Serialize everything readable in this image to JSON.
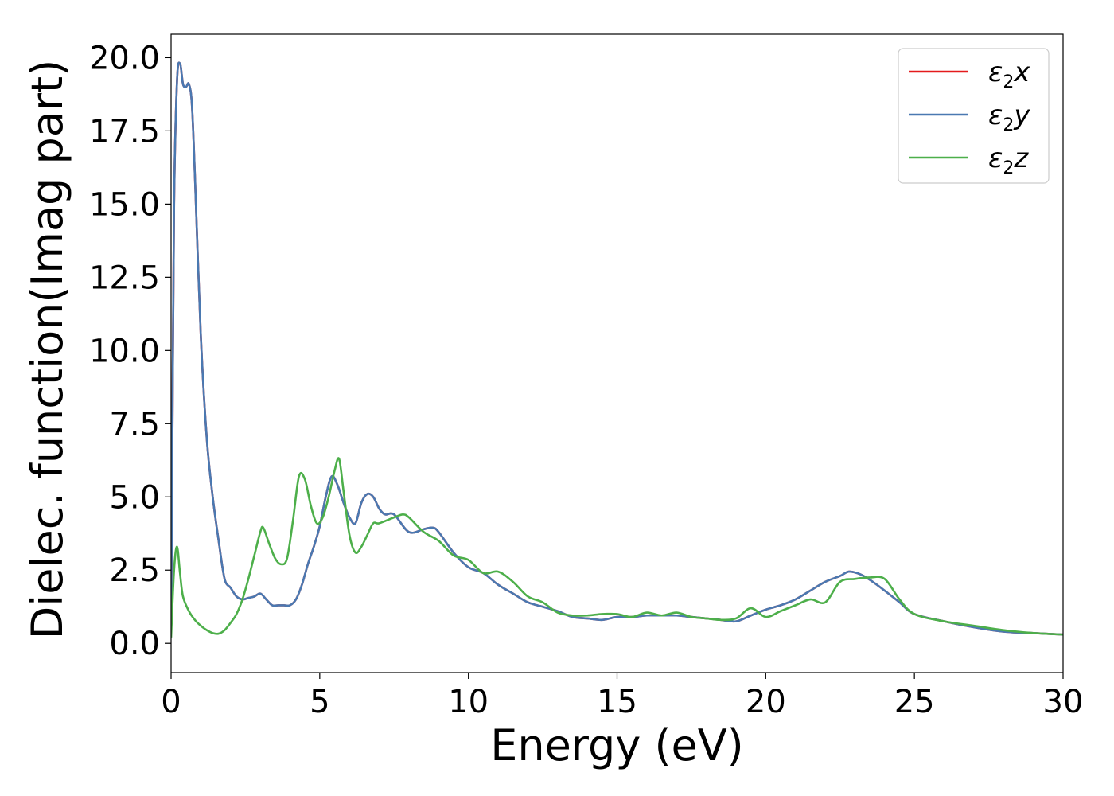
{
  "chart_data": {
    "type": "line",
    "xlabel": "Energy (eV)",
    "ylabel": "Dielec. function(Imag part)",
    "xlim": [
      0,
      30
    ],
    "ylim": [
      -1.0,
      20.8
    ],
    "xticks": [
      0,
      5,
      10,
      15,
      20,
      25,
      30
    ],
    "xtick_labels": [
      "0",
      "5",
      "10",
      "15",
      "20",
      "25",
      "30"
    ],
    "yticks": [
      0,
      2.5,
      5,
      7.5,
      10,
      12.5,
      15,
      17.5,
      20
    ],
    "ytick_labels": [
      "0.0",
      "2.5",
      "5.0",
      "7.5",
      "10.0",
      "12.5",
      "15.0",
      "17.5",
      "20.0"
    ],
    "grid": false,
    "legend_position": "top-right",
    "series": [
      {
        "name": "ε2x",
        "legend_main": "ε",
        "legend_sub": "2",
        "legend_var": "x",
        "color": "#e41a1c",
        "x": [
          0,
          0.05,
          0.1,
          0.2,
          0.3,
          0.4,
          0.5,
          0.6,
          0.7,
          0.8,
          1.0,
          1.2,
          1.4,
          1.6,
          1.8,
          2.0,
          2.2,
          2.4,
          2.6,
          2.8,
          3.0,
          3.2,
          3.4,
          3.6,
          3.8,
          4.0,
          4.2,
          4.4,
          4.6,
          4.8,
          5.0,
          5.2,
          5.4,
          5.6,
          5.8,
          6.0,
          6.2,
          6.4,
          6.6,
          6.8,
          7.0,
          7.2,
          7.5,
          8.0,
          8.5,
          8.8,
          9.0,
          9.5,
          10.0,
          10.5,
          11.0,
          11.5,
          12.0,
          12.5,
          13.0,
          13.5,
          14.0,
          14.5,
          15.0,
          15.5,
          16.0,
          16.5,
          17.0,
          17.5,
          18.0,
          18.5,
          19.0,
          19.5,
          20.0,
          20.5,
          21.0,
          21.5,
          22.0,
          22.5,
          22.8,
          23.2,
          23.6,
          24.0,
          24.5,
          25.0,
          26.0,
          27.0,
          28.0,
          29.0,
          30.0
        ],
        "y": [
          0.3,
          8.0,
          15.0,
          19.2,
          19.8,
          19.1,
          19.0,
          19.1,
          18.4,
          16.0,
          10.5,
          7.0,
          5.0,
          3.5,
          2.2,
          1.9,
          1.6,
          1.5,
          1.55,
          1.6,
          1.7,
          1.5,
          1.3,
          1.3,
          1.3,
          1.3,
          1.5,
          2.0,
          2.7,
          3.3,
          4.0,
          5.0,
          5.7,
          5.4,
          4.8,
          4.3,
          4.1,
          4.8,
          5.1,
          5.0,
          4.6,
          4.4,
          4.4,
          3.8,
          3.9,
          3.95,
          3.8,
          3.1,
          2.6,
          2.4,
          2.0,
          1.7,
          1.4,
          1.25,
          1.1,
          0.9,
          0.85,
          0.8,
          0.9,
          0.9,
          0.95,
          0.95,
          0.95,
          0.9,
          0.85,
          0.8,
          0.75,
          0.95,
          1.15,
          1.3,
          1.5,
          1.8,
          2.1,
          2.3,
          2.45,
          2.35,
          2.1,
          1.8,
          1.4,
          1.0,
          0.75,
          0.55,
          0.4,
          0.35,
          0.3
        ]
      },
      {
        "name": "ε2y",
        "legend_main": "ε",
        "legend_sub": "2",
        "legend_var": "y",
        "color": "#4a79b1",
        "x": [
          0,
          0.05,
          0.1,
          0.2,
          0.3,
          0.4,
          0.5,
          0.6,
          0.7,
          0.8,
          1.0,
          1.2,
          1.4,
          1.6,
          1.8,
          2.0,
          2.2,
          2.4,
          2.6,
          2.8,
          3.0,
          3.2,
          3.4,
          3.6,
          3.8,
          4.0,
          4.2,
          4.4,
          4.6,
          4.8,
          5.0,
          5.2,
          5.4,
          5.6,
          5.8,
          6.0,
          6.2,
          6.4,
          6.6,
          6.8,
          7.0,
          7.2,
          7.5,
          8.0,
          8.5,
          8.8,
          9.0,
          9.5,
          10.0,
          10.5,
          11.0,
          11.5,
          12.0,
          12.5,
          13.0,
          13.5,
          14.0,
          14.5,
          15.0,
          15.5,
          16.0,
          16.5,
          17.0,
          17.5,
          18.0,
          18.5,
          19.0,
          19.5,
          20.0,
          20.5,
          21.0,
          21.5,
          22.0,
          22.5,
          22.8,
          23.2,
          23.6,
          24.0,
          24.5,
          25.0,
          26.0,
          27.0,
          28.0,
          29.0,
          30.0
        ],
        "y": [
          0.3,
          8.0,
          15.0,
          19.2,
          19.8,
          19.1,
          19.0,
          19.1,
          18.4,
          16.0,
          10.5,
          7.0,
          5.0,
          3.5,
          2.2,
          1.9,
          1.6,
          1.5,
          1.55,
          1.6,
          1.7,
          1.5,
          1.3,
          1.3,
          1.3,
          1.3,
          1.5,
          2.0,
          2.7,
          3.3,
          4.0,
          5.0,
          5.7,
          5.4,
          4.8,
          4.3,
          4.1,
          4.8,
          5.1,
          5.0,
          4.6,
          4.4,
          4.4,
          3.8,
          3.9,
          3.95,
          3.8,
          3.1,
          2.6,
          2.4,
          2.0,
          1.7,
          1.4,
          1.25,
          1.1,
          0.9,
          0.85,
          0.8,
          0.9,
          0.9,
          0.95,
          0.95,
          0.95,
          0.9,
          0.85,
          0.8,
          0.75,
          0.95,
          1.15,
          1.3,
          1.5,
          1.8,
          2.1,
          2.3,
          2.45,
          2.35,
          2.1,
          1.8,
          1.4,
          1.0,
          0.75,
          0.55,
          0.4,
          0.35,
          0.3
        ]
      },
      {
        "name": "ε2z",
        "legend_main": "ε",
        "legend_sub": "2",
        "legend_var": "z",
        "color": "#4daf4a",
        "x": [
          0,
          0.1,
          0.2,
          0.3,
          0.4,
          0.6,
          0.8,
          1.0,
          1.2,
          1.4,
          1.6,
          1.8,
          2.0,
          2.2,
          2.4,
          2.6,
          2.8,
          3.0,
          3.1,
          3.3,
          3.5,
          3.7,
          3.9,
          4.1,
          4.3,
          4.5,
          4.7,
          4.9,
          5.1,
          5.3,
          5.5,
          5.65,
          5.8,
          6.0,
          6.2,
          6.4,
          6.6,
          6.8,
          7.0,
          7.5,
          7.8,
          8.0,
          8.5,
          9.0,
          9.5,
          10.0,
          10.5,
          11.0,
          11.5,
          12.0,
          12.5,
          13.0,
          13.5,
          14.0,
          14.5,
          15.0,
          15.5,
          16.0,
          16.5,
          17.0,
          17.5,
          18.0,
          18.5,
          19.0,
          19.5,
          20.0,
          20.5,
          21.0,
          21.5,
          22.0,
          22.5,
          23.0,
          23.5,
          24.0,
          24.5,
          25.0,
          26.0,
          27.0,
          28.0,
          29.0,
          30.0
        ],
        "y": [
          0.2,
          2.5,
          3.3,
          2.4,
          1.6,
          1.1,
          0.8,
          0.6,
          0.45,
          0.35,
          0.33,
          0.45,
          0.7,
          1.0,
          1.5,
          2.2,
          3.0,
          3.8,
          3.95,
          3.4,
          2.9,
          2.7,
          2.9,
          4.2,
          5.7,
          5.6,
          4.7,
          4.1,
          4.3,
          5.0,
          5.9,
          6.3,
          5.2,
          3.7,
          3.1,
          3.3,
          3.7,
          4.1,
          4.1,
          4.3,
          4.4,
          4.3,
          3.8,
          3.5,
          3.0,
          2.85,
          2.4,
          2.45,
          2.1,
          1.6,
          1.4,
          1.05,
          0.95,
          0.95,
          1.0,
          1.0,
          0.9,
          1.05,
          0.95,
          1.05,
          0.9,
          0.85,
          0.8,
          0.85,
          1.2,
          0.9,
          1.1,
          1.3,
          1.5,
          1.4,
          2.1,
          2.2,
          2.25,
          2.2,
          1.5,
          1.0,
          0.75,
          0.6,
          0.45,
          0.35,
          0.3
        ]
      }
    ]
  }
}
